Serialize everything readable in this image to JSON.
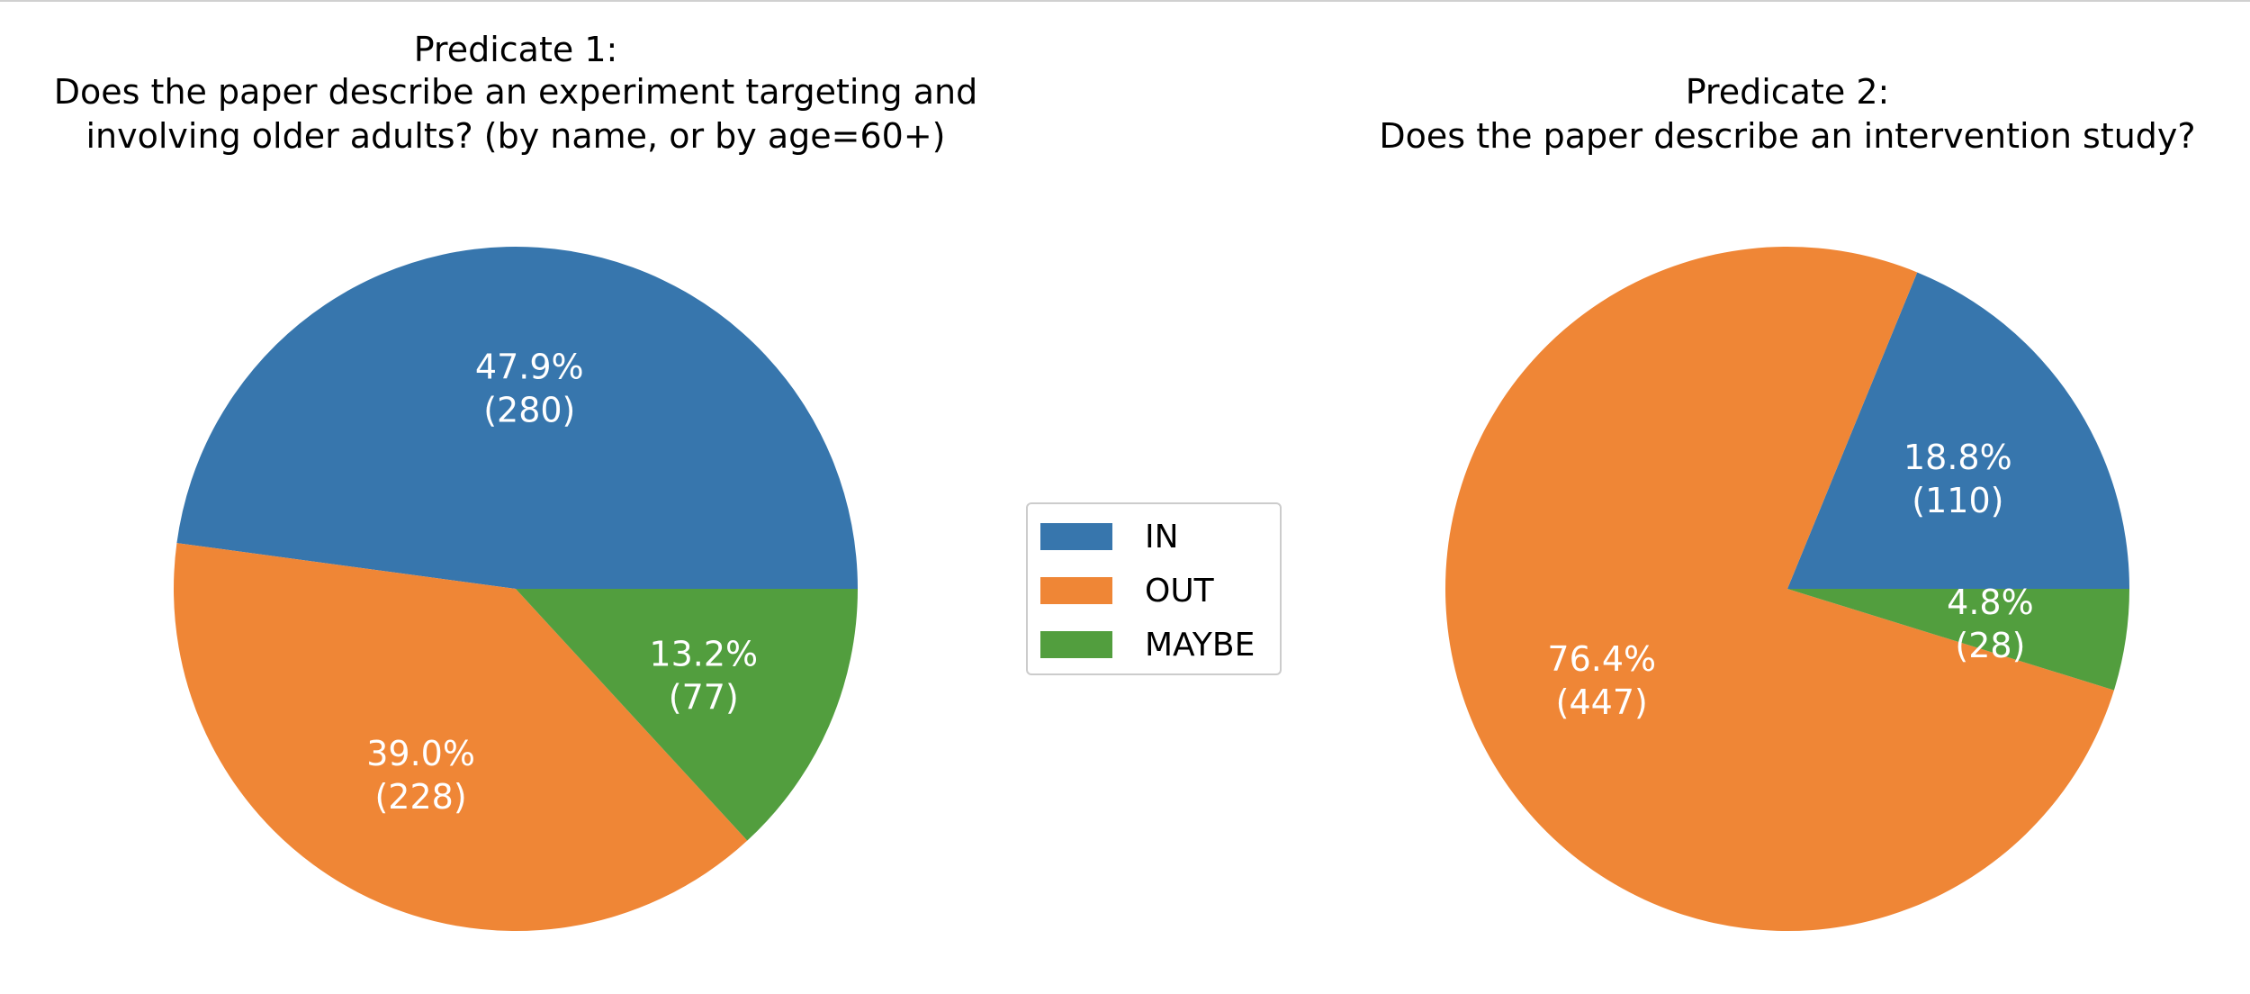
{
  "chart_data": [
    {
      "type": "pie",
      "title": [
        "Predicate 1:",
        "Does the paper describe an experiment targeting and",
        "involving older adults? (by name, or by age=60+)"
      ],
      "categories": [
        "IN",
        "OUT",
        "MAYBE"
      ],
      "values": [
        280,
        228,
        77
      ],
      "percent_labels": [
        "47.9%",
        "39.0%",
        "13.2%"
      ],
      "count_labels": [
        "(280)",
        "(228)",
        "(77)"
      ],
      "start_angle_deg": 0,
      "direction": "counterclockwise"
    },
    {
      "type": "pie",
      "title": [
        "Predicate 2:",
        "Does the paper describe an intervention study?"
      ],
      "categories": [
        "IN",
        "OUT",
        "MAYBE"
      ],
      "values": [
        110,
        447,
        28
      ],
      "percent_labels": [
        "18.8%",
        "76.4%",
        "4.8%"
      ],
      "count_labels": [
        "(110)",
        "(447)",
        "(28)"
      ],
      "start_angle_deg": 0,
      "direction": "counterclockwise"
    }
  ],
  "legend": {
    "placement": "center",
    "entries": [
      "IN",
      "OUT",
      "MAYBE"
    ]
  },
  "colors": [
    "#3776ad",
    "#ef8636",
    "#529e3e"
  ]
}
